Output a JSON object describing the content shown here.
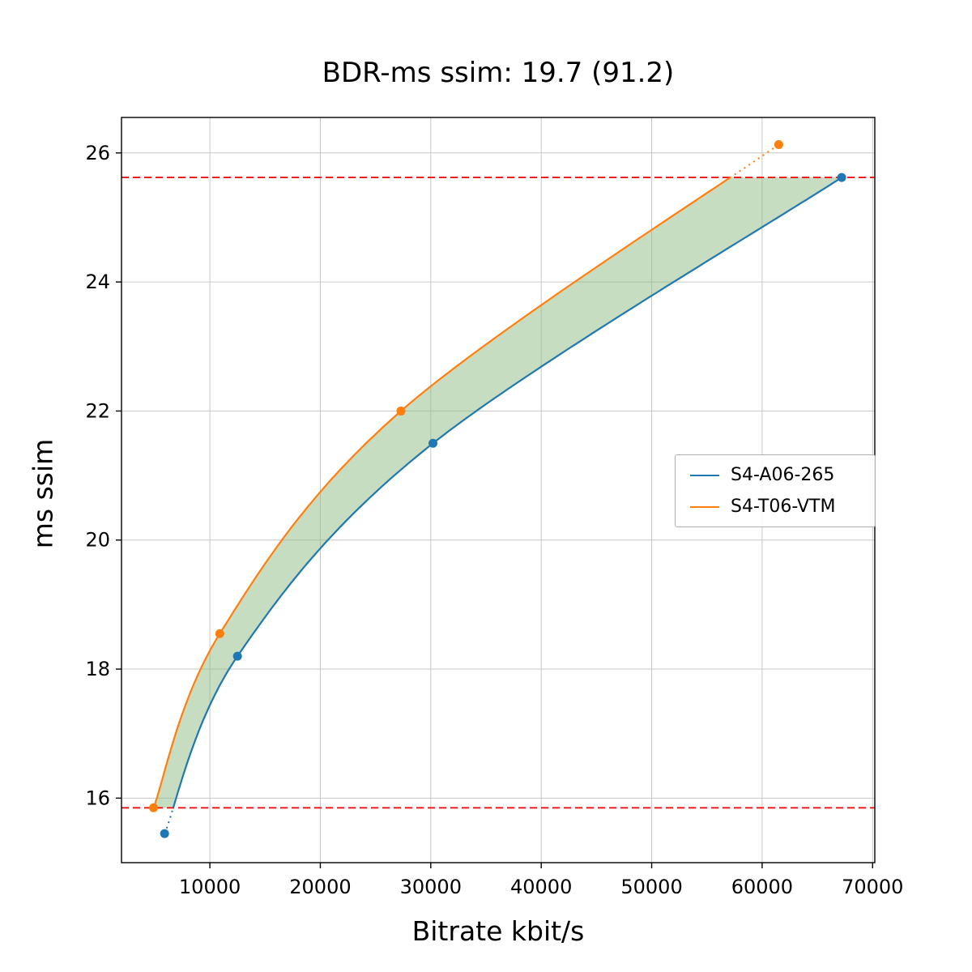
{
  "chart_data": {
    "type": "line",
    "title": "BDR-ms ssim: 19.7 (91.2)",
    "xlabel": "Bitrate kbit/s",
    "ylabel": "ms ssim",
    "xlim": [
      2000,
      70200
    ],
    "ylim": [
      15.0,
      26.55
    ],
    "x_ticks": [
      10000,
      20000,
      30000,
      40000,
      50000,
      60000,
      70000
    ],
    "y_ticks": [
      16,
      18,
      20,
      22,
      24,
      26
    ],
    "grid": true,
    "series": [
      {
        "name": "S4-A06-265",
        "color": "#1f77b4",
        "x": [
          5900,
          12500,
          30200,
          67200
        ],
        "y": [
          15.45,
          18.2,
          21.5,
          25.62
        ]
      },
      {
        "name": "S4-T06-VTM",
        "color": "#ff7f0e",
        "x": [
          4900,
          10900,
          27300,
          61500
        ],
        "y": [
          15.85,
          18.55,
          22.0,
          26.13
        ]
      }
    ],
    "hlines": [
      {
        "y": 25.62,
        "color": "#ee1111",
        "style": "dashed"
      },
      {
        "y": 15.85,
        "color": "#ee1111",
        "style": "dashed"
      }
    ],
    "shaded_region": {
      "color": "#8fbc84",
      "opacity": 0.5,
      "y_range": [
        15.85,
        25.62
      ]
    },
    "legend": {
      "position": "center right",
      "entries": [
        "S4-A06-265",
        "S4-T06-VTM"
      ]
    }
  }
}
